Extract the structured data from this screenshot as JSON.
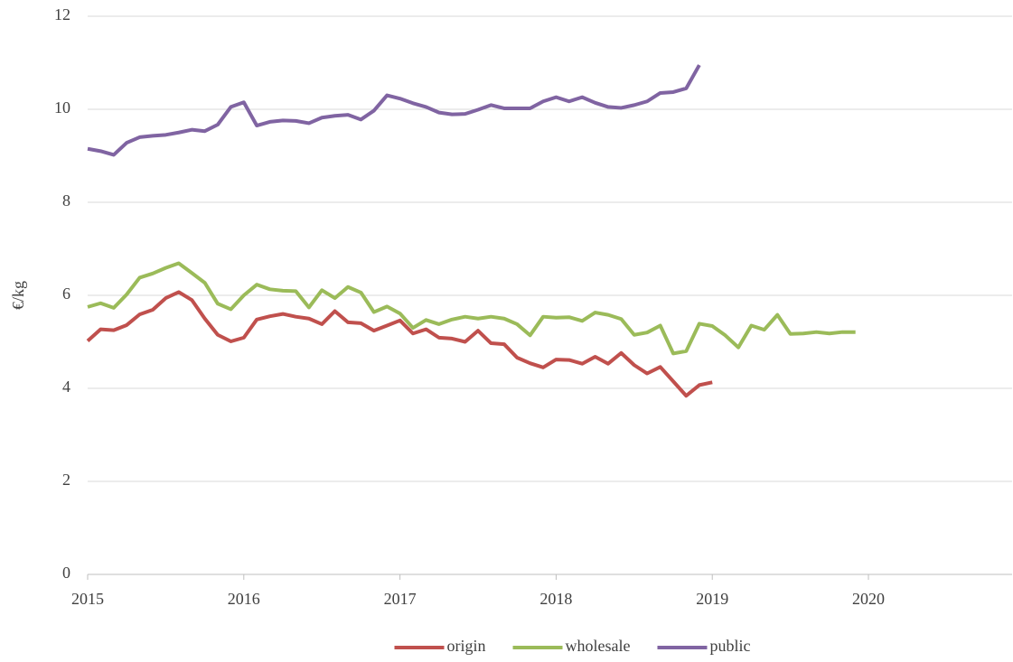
{
  "chart_data": {
    "type": "line",
    "y_label": "€/kg",
    "x": [
      2015,
      2015.083,
      2015.167,
      2015.25,
      2015.333,
      2015.417,
      2015.5,
      2015.583,
      2015.667,
      2015.75,
      2015.833,
      2015.917,
      2016,
      2016.083,
      2016.167,
      2016.25,
      2016.333,
      2016.417,
      2016.5,
      2016.583,
      2016.667,
      2016.75,
      2016.833,
      2016.917,
      2017,
      2017.083,
      2017.167,
      2017.25,
      2017.333,
      2017.417,
      2017.5,
      2017.583,
      2017.667,
      2017.75,
      2017.833,
      2017.917,
      2018,
      2018.083,
      2018.167,
      2018.25,
      2018.333,
      2018.417,
      2018.5,
      2018.583,
      2018.667,
      2018.75,
      2018.833,
      2018.917,
      2019,
      2019.083,
      2019.167,
      2019.25,
      2019.333,
      2019.417,
      2019.5,
      2019.583,
      2019.667,
      2019.75,
      2019.833,
      2019.917
    ],
    "series": [
      {
        "name": "origin",
        "color": "#c0504d",
        "values": [
          5.02,
          5.27,
          5.25,
          5.36,
          5.59,
          5.69,
          5.94,
          6.07,
          5.9,
          5.5,
          5.15,
          5.01,
          5.09,
          5.48,
          5.55,
          5.6,
          5.54,
          5.5,
          5.38,
          5.66,
          5.42,
          5.4,
          5.24,
          5.35,
          5.46,
          5.18,
          5.27,
          5.09,
          5.07,
          5.0,
          5.24,
          4.97,
          4.95,
          4.66,
          4.54,
          4.45,
          4.62,
          4.61,
          4.53,
          4.68,
          4.53,
          4.76,
          4.5,
          4.32,
          4.46,
          4.15,
          3.84,
          4.07,
          4.13,
          null,
          null,
          null,
          null,
          null,
          null,
          null,
          null,
          null,
          null,
          null
        ]
      },
      {
        "name": "wholesale",
        "color": "#9bbb59",
        "values": [
          5.75,
          5.83,
          5.73,
          6.02,
          6.38,
          6.47,
          6.59,
          6.69,
          6.48,
          6.27,
          5.82,
          5.7,
          6.0,
          6.23,
          6.13,
          6.1,
          6.09,
          5.74,
          6.11,
          5.94,
          6.18,
          6.06,
          5.64,
          5.76,
          5.61,
          5.3,
          5.47,
          5.38,
          5.48,
          5.54,
          5.5,
          5.54,
          5.5,
          5.38,
          5.14,
          5.54,
          5.52,
          5.53,
          5.45,
          5.63,
          5.58,
          5.49,
          5.15,
          5.2,
          5.35,
          4.75,
          4.8,
          5.39,
          5.34,
          5.14,
          4.88,
          5.35,
          5.26,
          5.58,
          5.17,
          5.18,
          5.21,
          5.18,
          5.21,
          5.21
        ]
      },
      {
        "name": "public",
        "color": "#8064a2",
        "values": [
          9.15,
          9.1,
          9.02,
          9.28,
          9.4,
          9.43,
          9.45,
          9.5,
          9.56,
          9.53,
          9.67,
          10.05,
          10.15,
          9.65,
          9.73,
          9.76,
          9.75,
          9.7,
          9.82,
          9.86,
          9.88,
          9.78,
          9.97,
          10.3,
          10.23,
          10.13,
          10.05,
          9.93,
          9.89,
          9.9,
          9.99,
          10.09,
          10.02,
          10.02,
          10.02,
          10.17,
          10.26,
          10.17,
          10.26,
          10.14,
          10.05,
          10.03,
          10.09,
          10.17,
          10.35,
          10.37,
          10.45,
          10.95,
          null,
          null,
          null,
          null,
          null,
          null,
          null,
          null,
          null,
          null,
          null,
          null
        ]
      }
    ],
    "xlim": [
      2015,
      2020.92
    ],
    "xticks": [
      2015,
      2016,
      2017,
      2018,
      2019,
      2020
    ],
    "ylim": [
      0,
      12
    ],
    "yticks": [
      0,
      2,
      4,
      6,
      8,
      10,
      12
    ],
    "grid": true,
    "legend": "bottom"
  }
}
